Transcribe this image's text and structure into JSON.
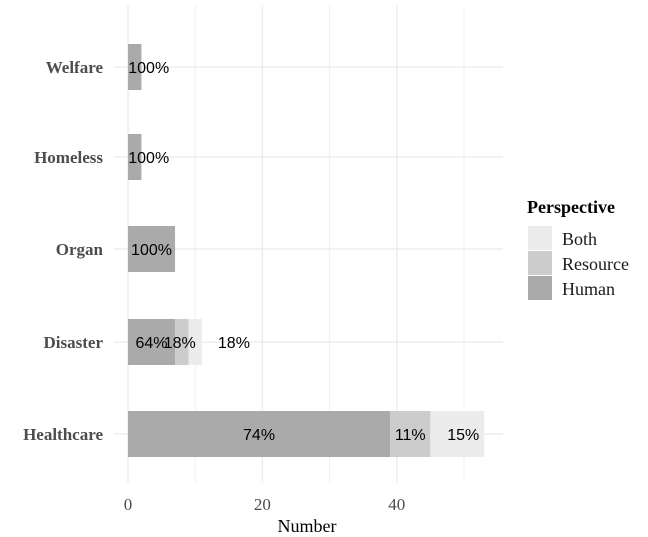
{
  "chart_data": {
    "type": "bar",
    "orientation": "horizontal",
    "stacked": true,
    "categories": [
      "Welfare",
      "Homeless",
      "Organ",
      "Disaster",
      "Healthcare"
    ],
    "series": [
      {
        "name": "Human",
        "values": [
          2,
          2,
          7,
          7,
          39
        ],
        "labels": [
          "100%",
          "100%",
          "100%",
          "64%",
          "74%"
        ],
        "color": "#aaaaaa"
      },
      {
        "name": "Resource",
        "values": [
          0,
          0,
          0,
          2,
          6
        ],
        "labels": [
          "",
          "",
          "",
          "18%",
          "11%"
        ],
        "color": "#cccccc"
      },
      {
        "name": "Both",
        "values": [
          0,
          0,
          0,
          2,
          8
        ],
        "labels": [
          "",
          "",
          "",
          "18%",
          "15%"
        ],
        "color": "#ececec"
      }
    ],
    "xlabel": "Number",
    "ylabel": "",
    "xlim": [
      0,
      55
    ],
    "xticks": [
      "0",
      "20",
      "40"
    ],
    "grid": true,
    "legend": {
      "title": "Perspective",
      "position": "right",
      "entries": [
        "Both",
        "Resource",
        "Human"
      ]
    }
  }
}
